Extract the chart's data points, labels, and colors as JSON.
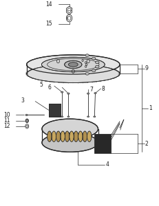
{
  "bg_color": "#ffffff",
  "line_color": "#2a2a2a",
  "fig_width": 2.31,
  "fig_height": 3.0,
  "dpi": 100
}
